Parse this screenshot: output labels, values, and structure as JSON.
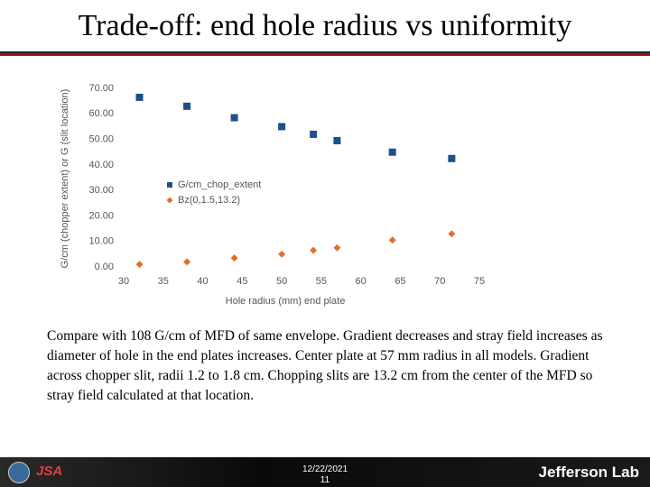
{
  "slide": {
    "title": "Trade-off: end hole radius vs uniformity",
    "body": "Compare with 108 G/cm of MFD of same envelope.  Gradient decreases and stray field increases as diameter of hole in the end plates increases.  Center plate at 57 mm radius in all models.  Gradient across chopper slit, radii 1.2 to 1.8 cm.  Chopping slits are 13.2 cm from the center of the MFD so stray field calculated at that location.",
    "footer_date": "12/22/2021",
    "footer_page": "11",
    "logo_left": "JSA",
    "logo_right": "Jefferson Lab"
  },
  "chart_data": {
    "type": "scatter",
    "x_label": "Hole radius (mm) end plate",
    "y_label": "G/cm (chopper extent) or G (slit location)",
    "x": [
      32,
      38,
      44,
      50,
      54,
      57,
      64,
      71.5
    ],
    "series": [
      {
        "name": "G/cm_chop_extent",
        "color": "#1f4e8c",
        "marker": "square",
        "values": [
          66.5,
          63,
          58.5,
          55,
          52,
          49.5,
          45,
          42.5
        ]
      },
      {
        "name": "Bz(0,1.5,13.2)",
        "color": "#e0702a",
        "marker": "diamond",
        "values": [
          1,
          2,
          3.5,
          5,
          6.5,
          7.5,
          10.5,
          13
        ]
      }
    ],
    "xlim": [
      30,
      75
    ],
    "xticks": [
      30,
      35,
      40,
      45,
      50,
      55,
      60,
      65,
      70,
      75
    ],
    "ylim": [
      0,
      70
    ],
    "yticks": [
      {
        "value": 0,
        "label": "0.00"
      },
      {
        "value": 10,
        "label": "10.00"
      },
      {
        "value": 20,
        "label": "20.00"
      },
      {
        "value": 30,
        "label": "30.00"
      },
      {
        "value": 40,
        "label": "40.00"
      },
      {
        "value": 50,
        "label": "50.00"
      },
      {
        "value": 60,
        "label": "60.00"
      },
      {
        "value": 70,
        "label": "70.00"
      }
    ],
    "grid": false
  }
}
